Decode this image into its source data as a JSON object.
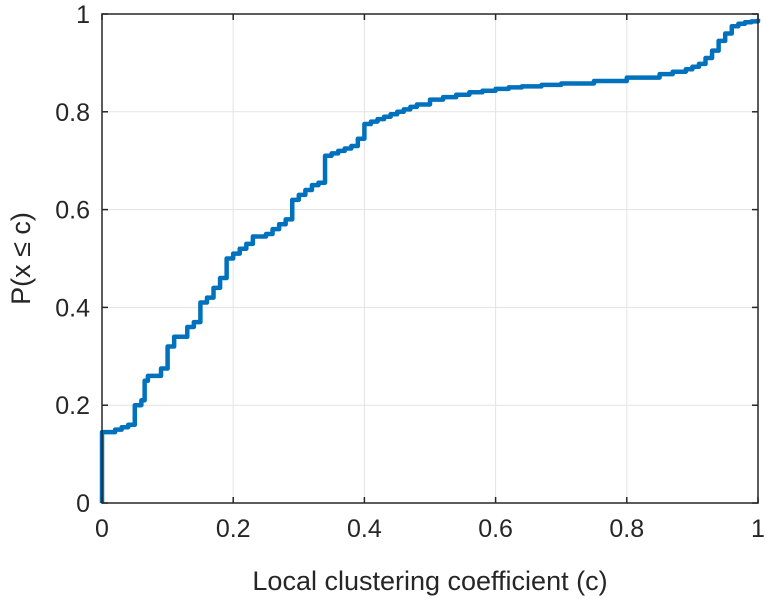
{
  "chart_data": {
    "type": "line",
    "title": "",
    "xlabel": "Local clustering coefficient (c)",
    "ylabel": "P(x ≤ c)",
    "xlim": [
      0,
      1
    ],
    "ylim": [
      0,
      1
    ],
    "grid": true,
    "xticks": [
      "0",
      "0.2",
      "0.4",
      "0.6",
      "0.8",
      "1"
    ],
    "yticks": [
      "0",
      "0.2",
      "0.4",
      "0.6",
      "0.8",
      "1"
    ],
    "line_color": "#0072BD",
    "series": [
      {
        "name": "CDF",
        "step": true,
        "x": [
          0,
          0,
          0.02,
          0.03,
          0.04,
          0.05,
          0.05,
          0.06,
          0.065,
          0.065,
          0.07,
          0.09,
          0.1,
          0.1,
          0.11,
          0.13,
          0.14,
          0.15,
          0.16,
          0.17,
          0.18,
          0.19,
          0.2,
          0.21,
          0.22,
          0.23,
          0.25,
          0.26,
          0.27,
          0.28,
          0.29,
          0.3,
          0.31,
          0.32,
          0.33,
          0.34,
          0.35,
          0.36,
          0.37,
          0.38,
          0.39,
          0.4,
          0.41,
          0.42,
          0.43,
          0.44,
          0.45,
          0.46,
          0.47,
          0.48,
          0.5,
          0.52,
          0.54,
          0.56,
          0.58,
          0.6,
          0.62,
          0.64,
          0.67,
          0.7,
          0.75,
          0.8,
          0.85,
          0.87,
          0.89,
          0.9,
          0.91,
          0.92,
          0.93,
          0.94,
          0.95,
          0.96,
          0.97,
          0.98,
          0.99,
          1
        ],
        "y": [
          0,
          0.145,
          0.15,
          0.155,
          0.16,
          0.165,
          0.2,
          0.21,
          0.21,
          0.25,
          0.26,
          0.275,
          0.28,
          0.32,
          0.34,
          0.36,
          0.37,
          0.41,
          0.42,
          0.44,
          0.46,
          0.5,
          0.51,
          0.52,
          0.53,
          0.545,
          0.55,
          0.56,
          0.57,
          0.58,
          0.62,
          0.63,
          0.64,
          0.65,
          0.655,
          0.71,
          0.715,
          0.72,
          0.725,
          0.73,
          0.745,
          0.775,
          0.78,
          0.785,
          0.79,
          0.795,
          0.8,
          0.805,
          0.81,
          0.815,
          0.825,
          0.83,
          0.835,
          0.84,
          0.843,
          0.847,
          0.85,
          0.852,
          0.855,
          0.858,
          0.863,
          0.87,
          0.877,
          0.882,
          0.887,
          0.892,
          0.898,
          0.91,
          0.925,
          0.945,
          0.96,
          0.975,
          0.98,
          0.983,
          0.985,
          0.99
        ]
      }
    ]
  }
}
